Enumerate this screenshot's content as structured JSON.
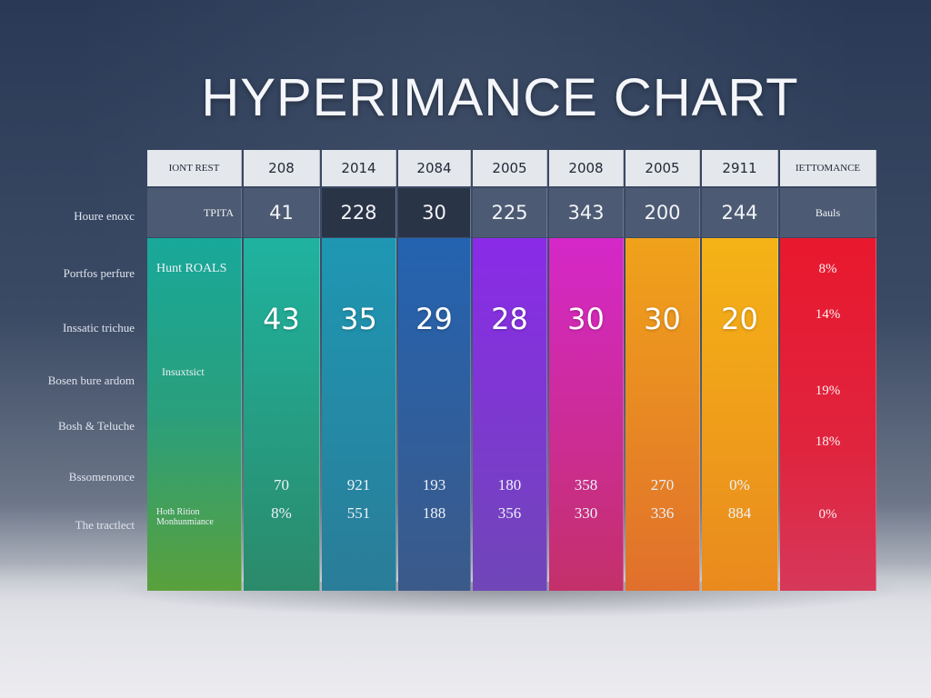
{
  "title": "HYPERIMANCE CHART",
  "row_labels": [
    "Houre enoxc",
    "Portfos perfure",
    "Inssatic trichue",
    "Bosen bure ardom",
    "Bosh & Teluche",
    "Bssomenonce",
    "The tractlect"
  ],
  "header": {
    "first_label": "IONT REST",
    "last_label": "IETTOMANCE"
  },
  "subheader": {
    "first_label": "TPITA",
    "last_label": "Bauls"
  },
  "first_column": {
    "label_a": "Hunt ROALS",
    "label_b": "Insuxtsict",
    "label_c": "Hoth Rition Monhunmiance"
  },
  "colors": {
    "teal_top": "#16a59a",
    "green_bottom": "#3c9a62",
    "red": "#e21d3a"
  },
  "chart_data": {
    "type": "table",
    "title": "HYPERIMANCE CHART",
    "columns": [
      {
        "header": "208",
        "top_value": "41",
        "main_value": "43",
        "row_a": "70",
        "row_b": "8%",
        "color_top": "#1fb3a0",
        "color_bottom": "#2b8a6a"
      },
      {
        "header": "2014",
        "top_value": "228",
        "main_value": "35",
        "row_a": "921",
        "row_b": "551",
        "color_top": "#1e97b3",
        "color_bottom": "#2a7d98"
      },
      {
        "header": "2084",
        "top_value": "30",
        "main_value": "29",
        "row_a": "193",
        "row_b": "188",
        "color_top": "#2463b0",
        "color_bottom": "#3b5a8a"
      },
      {
        "header": "2005",
        "top_value": "225",
        "main_value": "28",
        "row_a": "180",
        "row_b": "356",
        "color_top": "#8a2be8",
        "color_bottom": "#7046b8"
      },
      {
        "header": "2008",
        "top_value": "343",
        "main_value": "30",
        "row_a": "358",
        "row_b": "330",
        "color_top": "#d528c9",
        "color_bottom": "#c4306a"
      },
      {
        "header": "2005",
        "top_value": "200",
        "main_value": "30",
        "row_a": "270",
        "row_b": "336",
        "color_top": "#f0a21a",
        "color_bottom": "#e0702c"
      },
      {
        "header": "2911",
        "top_value": "244",
        "main_value": "20",
        "row_a": "0%",
        "row_b": "884",
        "color_top": "#f5b316",
        "color_bottom": "#e98a1e"
      }
    ],
    "last_column_values": [
      "8%",
      "14%",
      "19%",
      "18%",
      "0%"
    ]
  }
}
